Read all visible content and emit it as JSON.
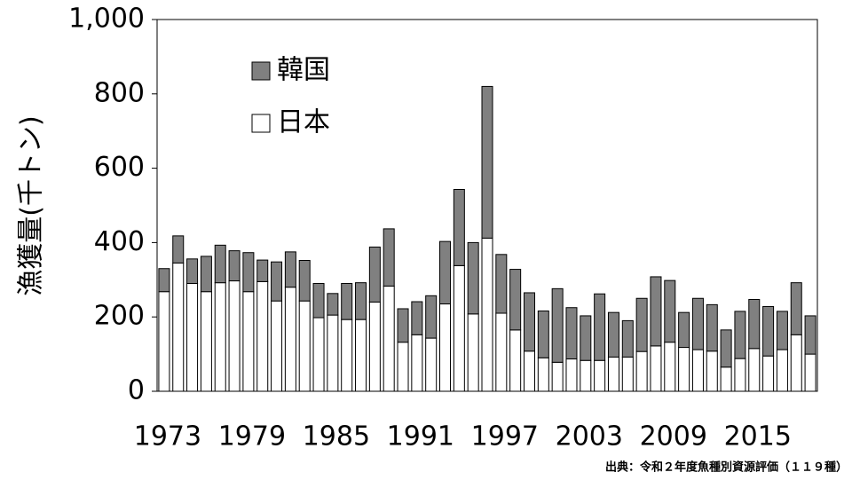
{
  "chart_data": {
    "type": "stacked_bar",
    "y_label": "漁獲量(千トン)",
    "source": "出典：令和２年度魚種別資源評価（１１９種）",
    "categories": [
      "1973",
      null,
      null,
      null,
      null,
      null,
      "1979",
      null,
      null,
      null,
      null,
      null,
      "1985",
      null,
      null,
      null,
      null,
      null,
      "1991",
      null,
      null,
      null,
      null,
      null,
      "1997",
      null,
      null,
      null,
      null,
      null,
      "2003",
      null,
      null,
      null,
      null,
      null,
      "2009",
      null,
      null,
      null,
      null,
      null,
      "2015",
      null,
      null,
      null,
      null
    ],
    "series": [
      {
        "name": "日本",
        "color": "#ffffff",
        "values": [
          268,
          345,
          290,
          268,
          292,
          297,
          268,
          295,
          243,
          280,
          243,
          198,
          205,
          193,
          193,
          240,
          283,
          132,
          152,
          143,
          235,
          338,
          208,
          412,
          210,
          165,
          108,
          90,
          78,
          87,
          83,
          83,
          92,
          92,
          107,
          122,
          132,
          118,
          112,
          108,
          65,
          88,
          115,
          95,
          112,
          152,
          100
        ]
      },
      {
        "name": "韓国",
        "color": "#808080",
        "values": [
          62,
          73,
          66,
          95,
          101,
          81,
          105,
          58,
          105,
          95,
          109,
          92,
          58,
          97,
          99,
          148,
          154,
          90,
          89,
          114,
          168,
          205,
          192,
          408,
          158,
          163,
          157,
          126,
          198,
          138,
          120,
          179,
          120,
          98,
          143,
          186,
          166,
          94,
          138,
          125,
          100,
          127,
          132,
          133,
          103,
          140,
          103
        ]
      }
    ],
    "ylim": [
      0,
      1000
    ],
    "yticks": [
      0,
      200,
      400,
      600,
      800,
      {
        "value": 1000,
        "label": "1,000"
      }
    ],
    "legend": "top-left"
  }
}
